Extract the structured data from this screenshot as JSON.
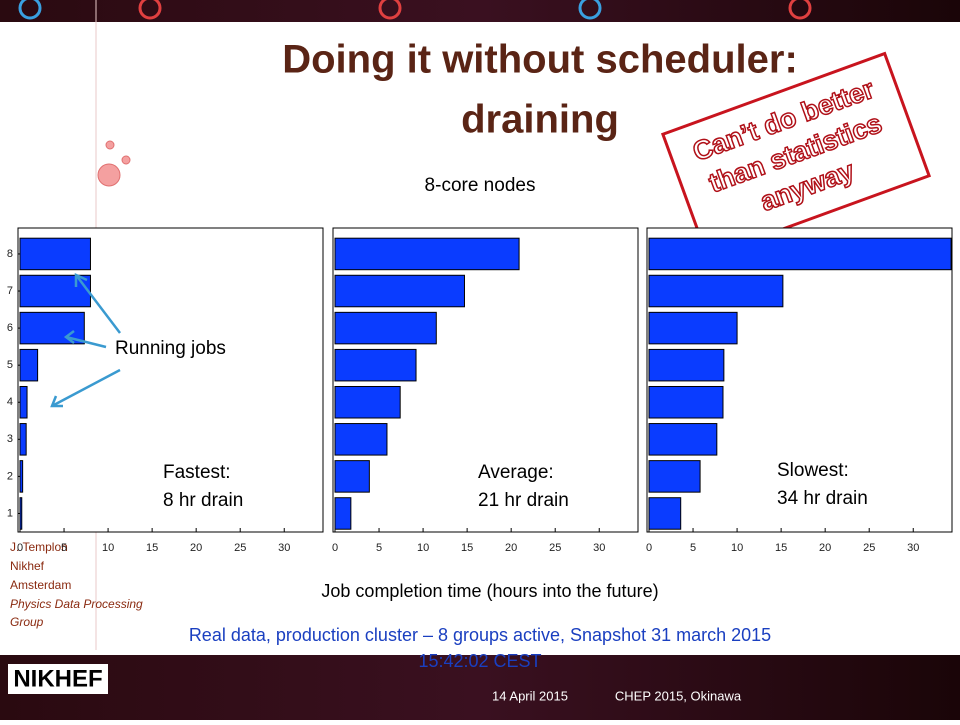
{
  "title": [
    "Doing it without scheduler:",
    "draining"
  ],
  "stamp": [
    "Can’t do better",
    "than statistics",
    "anyway"
  ],
  "subtitle": "8-core nodes",
  "xlabel": "Job completion time (hours into the future)",
  "caption": [
    "Real data, production cluster – 8 groups active, Snapshot 31 march 2015",
    "15:42:02 CEST"
  ],
  "author": [
    "J. Templon",
    "Nikhef",
    "Amsterdam",
    "Physics Data Processing",
    "Group"
  ],
  "pointer_label": "Running jobs",
  "logo": "NIKHEF",
  "footer": [
    "14 April 2015",
    "CHEP 2015, Okinawa"
  ],
  "chart_data": [
    {
      "type": "barh",
      "color": "#0a3cff",
      "y": [
        1,
        2,
        3,
        4,
        5,
        6,
        7,
        8
      ],
      "values": [
        0.2,
        0.3,
        0.7,
        0.8,
        2.0,
        7.3,
        8.0,
        8.0
      ],
      "xlim": [
        0,
        34.4
      ],
      "xticks": [
        0,
        5,
        10,
        15,
        20,
        25,
        30
      ],
      "ylim": [
        0.5,
        8.7
      ],
      "yticks": [
        1,
        2,
        3,
        4,
        5,
        6,
        7,
        8
      ],
      "annotation": [
        "Fastest:",
        "8 hr drain"
      ]
    },
    {
      "type": "barh",
      "color": "#0a3cff",
      "y": [
        1,
        2,
        3,
        4,
        5,
        6,
        7,
        8
      ],
      "values": [
        1.8,
        3.9,
        5.9,
        7.4,
        9.2,
        11.5,
        14.7,
        20.9
      ],
      "xlim": [
        0,
        34.4
      ],
      "xticks": [
        0,
        5,
        10,
        15,
        20,
        25,
        30
      ],
      "ylim": [
        0.5,
        8.7
      ],
      "annotation": [
        "Average:",
        "21 hr drain"
      ]
    },
    {
      "type": "barh",
      "color": "#0a3cff",
      "y": [
        1,
        2,
        3,
        4,
        5,
        6,
        7,
        8
      ],
      "values": [
        3.6,
        5.8,
        7.7,
        8.4,
        8.5,
        10.0,
        15.2,
        34.3
      ],
      "xlim": [
        0,
        34.4
      ],
      "xticks": [
        0,
        5,
        10,
        15,
        20,
        25,
        30
      ],
      "ylim": [
        0.5,
        8.7
      ],
      "annotation": [
        "Slowest:",
        "34 hr drain"
      ]
    }
  ]
}
